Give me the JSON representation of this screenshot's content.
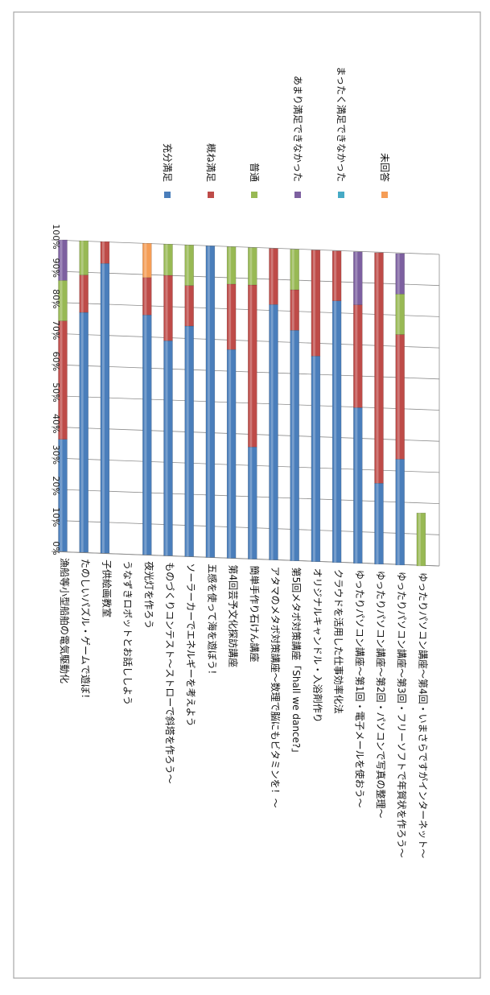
{
  "chart_data": {
    "type": "bar",
    "stacked": true,
    "orientation": "horizontal",
    "title": "",
    "xlabel": "",
    "ylabel": "",
    "xlim": [
      0,
      100
    ],
    "x_tick_labels": [
      "0%",
      "10%",
      "20%",
      "30%",
      "40%",
      "50%",
      "60%",
      "70%",
      "80%",
      "90%",
      "100%"
    ],
    "grid": true,
    "legend_position": "right",
    "categories": [
      "漁船等小型船舶の電気駆動化",
      "たのしいパズル・ゲームで遊ぼ！",
      "子供絵画教室",
      "うなずきロボットとお話ししよう",
      "夜光灯を作ろう",
      "ものづくりコンテスト～ストローで斜塔を作ろう～",
      "ソーラーカーでエネルギーを考えよう",
      "五感を使って海を遊ぼう！",
      "第4回芸予文化探訪講座",
      "簡単手作り石けん講座",
      "アタマのメタボ対策講座～数理で脳にもビタミンを！～",
      "第5回メタボ対策講座「Shall we dance?」",
      "オリジナルキャンドル・入浴剤作り",
      "クラウドを活用した仕事効率化法",
      "ゆったりパソコン講座～第1回・電子メールを使おう～",
      "ゆったりパソコン講座～第2回・パソコンで写真の整理～",
      "ゆったりパソコン講座～第3回・フリーソフトで年賀状を作ろう～",
      "ゆったりパソコン講座～第4回・いまさらですがインターネット～"
    ],
    "series": [
      {
        "name": "充分満足",
        "color": "#4a7ebb",
        "values": [
          36,
          77,
          93,
          0,
          77,
          69,
          74,
          100,
          67,
          36,
          82,
          74,
          66,
          84,
          50,
          26,
          34,
          0
        ]
      },
      {
        "name": "概ね満足",
        "color": "#be4b48",
        "values": [
          38,
          12,
          7,
          0,
          12,
          21,
          13,
          0,
          21,
          52,
          18,
          13,
          34,
          16,
          33,
          74,
          40,
          0
        ]
      },
      {
        "name": "普通",
        "color": "#98b954",
        "values": [
          13,
          11,
          0,
          0,
          0,
          10,
          13,
          0,
          12,
          12,
          0,
          13,
          0,
          0,
          0,
          0,
          13,
          17
        ]
      },
      {
        "name": "あまり満足できなかった",
        "color": "#7d60a0",
        "values": [
          13,
          0,
          0,
          0,
          0,
          0,
          0,
          0,
          0,
          0,
          0,
          0,
          0,
          0,
          17,
          0,
          13,
          0
        ]
      },
      {
        "name": "まったく満足できなかった",
        "color": "#46aac5",
        "values": [
          0,
          0,
          0,
          0,
          0,
          0,
          0,
          0,
          0,
          0,
          0,
          0,
          0,
          0,
          0,
          0,
          0,
          0
        ]
      },
      {
        "name": "未回答",
        "color": "#f59d56",
        "values": [
          0,
          0,
          0,
          0,
          11,
          0,
          0,
          0,
          0,
          0,
          0,
          0,
          0,
          0,
          0,
          0,
          0,
          0
        ]
      }
    ]
  }
}
